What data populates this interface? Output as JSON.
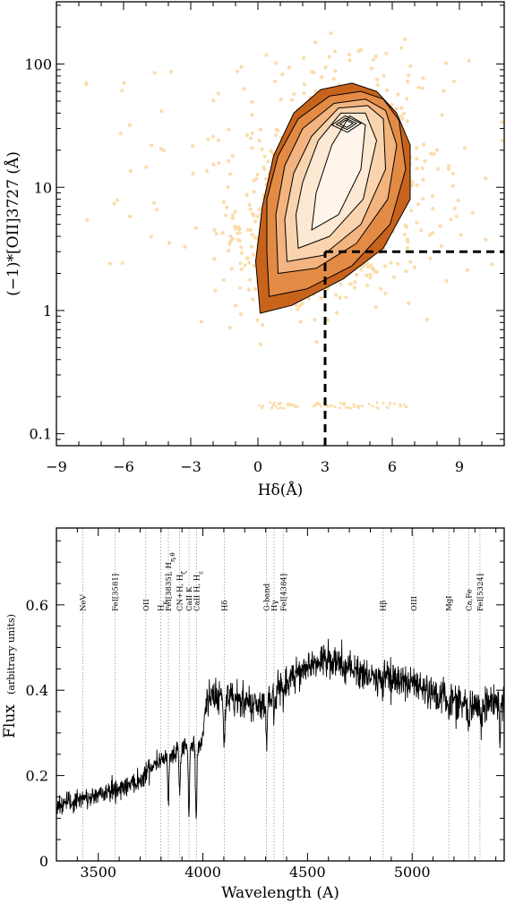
{
  "chart_data": [
    {
      "type": "scatter",
      "title": "",
      "xlabel": "Hδ(Å)",
      "ylabel": "(−1)*[OII]3727 (Å)",
      "xlim": [
        -9,
        11
      ],
      "ylim": [
        0.08,
        320
      ],
      "y_scale": "log",
      "xticks": [
        "−9",
        "−6",
        "−3",
        "0",
        "3",
        "6",
        "9"
      ],
      "xtick_values": [
        -9,
        -6,
        -3,
        0,
        3,
        6,
        9
      ],
      "yticks": [
        "0.1",
        "1",
        "10",
        "100"
      ],
      "ytick_values": [
        0.1,
        1,
        10,
        100
      ],
      "point_color": "#fbdcaa",
      "contour_colors": [
        "#c8631c",
        "#e38b45",
        "#f3b47f",
        "#f9d4ae",
        "#fde9d3",
        "#fff5ea"
      ],
      "contour_levels": [
        {
          "x": [
            0.1,
            1.5,
            3.8,
            5.6,
            6.8,
            6.8,
            6.2,
            5.3,
            4.2,
            2.8,
            1.6,
            0.7,
            0.2,
            -0.1,
            0.1
          ],
          "y": [
            0.95,
            1.1,
            1.8,
            3.2,
            8,
            22,
            40,
            60,
            70,
            62,
            40,
            18,
            7,
            2.5,
            0.95
          ]
        },
        {
          "x": [
            0.5,
            2.2,
            4.2,
            5.9,
            6.6,
            6.3,
            5.6,
            4.6,
            3.2,
            1.8,
            0.9,
            0.4,
            0.4,
            0.5
          ],
          "y": [
            1.3,
            1.5,
            2.3,
            5,
            14,
            35,
            52,
            60,
            55,
            36,
            18,
            8,
            3,
            1.3
          ]
        },
        {
          "x": [
            0.9,
            2.6,
            4.4,
            5.8,
            6.2,
            5.7,
            4.8,
            3.4,
            2.0,
            1.2,
            0.8,
            0.9
          ],
          "y": [
            2.0,
            2.2,
            3.5,
            8,
            22,
            42,
            52,
            48,
            30,
            15,
            6,
            2.0
          ]
        },
        {
          "x": [
            1.3,
            2.9,
            4.6,
            5.7,
            5.6,
            4.9,
            3.6,
            2.4,
            1.6,
            1.2,
            1.3
          ],
          "y": [
            2.5,
            2.8,
            5,
            14,
            36,
            46,
            44,
            26,
            13,
            5.5,
            2.5
          ]
        },
        {
          "x": [
            1.8,
            3.2,
            4.7,
            5.3,
            4.8,
            3.7,
            2.7,
            2.0,
            1.7,
            1.8
          ],
          "y": [
            3.2,
            4,
            8,
            24,
            40,
            40,
            24,
            11,
            6,
            3.2
          ]
        },
        {
          "x": [
            2.4,
            3.6,
            4.6,
            4.8,
            4.1,
            3.3,
            2.6,
            2.4
          ],
          "y": [
            4.5,
            6,
            14,
            32,
            38,
            22,
            9,
            4.5
          ]
        }
      ],
      "inner_peak": {
        "x": [
          3.3,
          3.9,
          4.6,
          4.0,
          3.3
        ],
        "y": [
          32,
          38,
          33,
          28,
          32
        ]
      },
      "cut_lines": [
        {
          "label": "",
          "x": [
            3,
            3
          ],
          "y": [
            0.08,
            3
          ]
        },
        {
          "label": "",
          "x": [
            3,
            11
          ],
          "y": [
            3,
            3
          ]
        }
      ]
    },
    {
      "type": "line",
      "title": "",
      "xlabel": "Wavelength (A)",
      "ylabel": "Flux",
      "ylabel_sub": "(arbitrary units)",
      "xlim": [
        3300,
        5440
      ],
      "ylim": [
        0,
        0.78
      ],
      "xticks": [
        "3500",
        "4000",
        "4500",
        "5000"
      ],
      "xtick_values": [
        3500,
        4000,
        4500,
        5000
      ],
      "yticks": [
        "0",
        "0.2",
        "0.4",
        "0.6"
      ],
      "ytick_values": [
        0,
        0.2,
        0.4,
        0.6
      ],
      "continuum": {
        "x": [
          3300,
          3400,
          3500,
          3600,
          3700,
          3750,
          3800,
          3850,
          3900,
          3950,
          3990,
          4020,
          4100,
          4200,
          4300,
          4400,
          4500,
          4600,
          4700,
          4800,
          4900,
          5000,
          5100,
          5200,
          5300,
          5400,
          5440
        ],
        "y": [
          0.13,
          0.14,
          0.155,
          0.17,
          0.19,
          0.22,
          0.24,
          0.25,
          0.26,
          0.27,
          0.27,
          0.38,
          0.39,
          0.37,
          0.37,
          0.42,
          0.46,
          0.47,
          0.45,
          0.43,
          0.43,
          0.41,
          0.39,
          0.38,
          0.36,
          0.37,
          0.38
        ]
      },
      "absorption_features": [
        {
          "x": 3835,
          "depth": 0.1
        },
        {
          "x": 3889,
          "depth": 0.1
        },
        {
          "x": 3933,
          "depth": 0.15
        },
        {
          "x": 3968,
          "depth": 0.17
        },
        {
          "x": 4102,
          "depth": 0.13
        },
        {
          "x": 4305,
          "depth": 0.09
        },
        {
          "x": 4340,
          "depth": 0.05
        },
        {
          "x": 4384,
          "depth": 0.04
        },
        {
          "x": 5175,
          "depth": 0.04
        },
        {
          "x": 5270,
          "depth": 0.05
        },
        {
          "x": 5330,
          "depth": 0.05
        },
        {
          "x": 5420,
          "depth": 0.09
        }
      ],
      "line_markers": [
        {
          "x": 3426,
          "label": "NeV"
        },
        {
          "x": 3581,
          "label": "FeI[3581]"
        },
        {
          "x": 3727,
          "label": "OII"
        },
        {
          "x": 3798,
          "label": "H<sub>κ</sub>"
        },
        {
          "x": 3835,
          "label": "FeI[3835], H<sub>η,θ</sub>"
        },
        {
          "x": 3889,
          "label": "CN+H, H<sub>ζ</sub>"
        },
        {
          "x": 3934,
          "label": "CaII K"
        },
        {
          "x": 3969,
          "label": "CaII H, H<sub>ε</sub>"
        },
        {
          "x": 4102,
          "label": "Hδ"
        },
        {
          "x": 4304,
          "label": "G-band"
        },
        {
          "x": 4340,
          "label": "Hγ"
        },
        {
          "x": 4384,
          "label": "FeI[4384]"
        },
        {
          "x": 4861,
          "label": "Hβ"
        },
        {
          "x": 5007,
          "label": "OIII"
        },
        {
          "x": 5175,
          "label": "MgI"
        },
        {
          "x": 5270,
          "label": "Ca,Fe"
        },
        {
          "x": 5324,
          "label": "FeI[5324]"
        }
      ]
    }
  ]
}
